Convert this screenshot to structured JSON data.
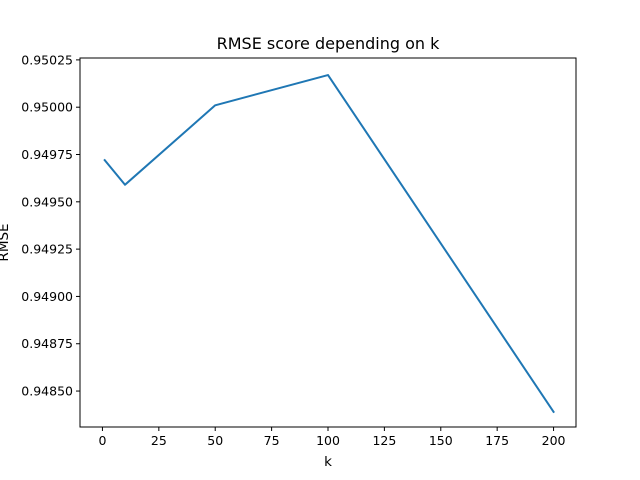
{
  "chart_data": {
    "type": "line",
    "title": "RMSE score depending on k",
    "xlabel": "k",
    "ylabel": "RMSE",
    "xlim": [
      -9.95,
      209.95
    ],
    "ylim": [
      0.94831,
      0.95026
    ],
    "xticks": [
      0,
      25,
      50,
      75,
      100,
      125,
      150,
      175,
      200
    ],
    "xtick_labels": [
      "0",
      "25",
      "50",
      "75",
      "100",
      "125",
      "150",
      "175",
      "200"
    ],
    "yticks": [
      0.9485,
      0.94875,
      0.949,
      0.94925,
      0.9495,
      0.94975,
      0.95,
      0.95025
    ],
    "ytick_labels": [
      "0.94850",
      "0.94875",
      "0.94900",
      "0.94925",
      "0.94950",
      "0.94975",
      "0.95000",
      "0.95025"
    ],
    "grid": false,
    "series": [
      {
        "color": "#1f77b4",
        "x": [
          1,
          10,
          50,
          100,
          200
        ],
        "y": [
          0.94972,
          0.94959,
          0.95001,
          0.95017,
          0.94839
        ]
      }
    ]
  }
}
